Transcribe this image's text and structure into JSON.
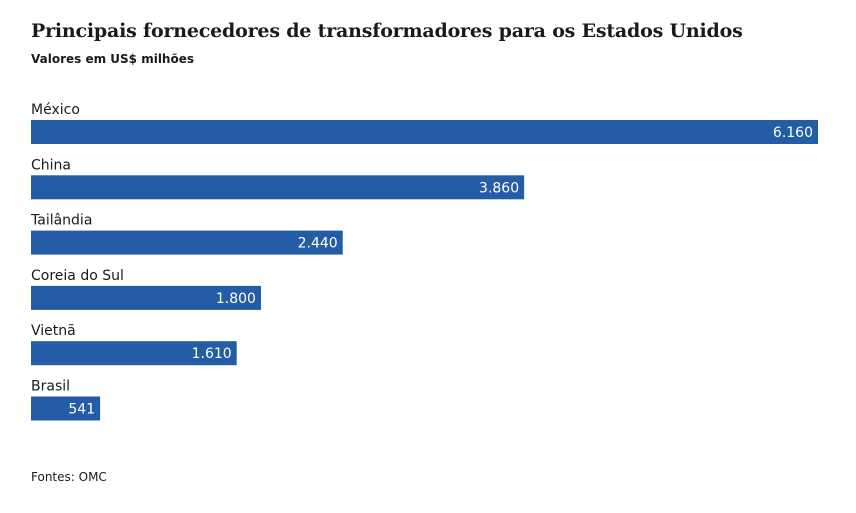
{
  "title": "Principais fornecedores de transformadores para os Estados Unidos",
  "subtitle": "Valores em US$ milhões",
  "source": "Fontes: OMC",
  "colors": {
    "bar": "#255ca6",
    "value_text": "#ffffff",
    "text": "#1a1a1a"
  },
  "chart_data": {
    "type": "bar",
    "orientation": "horizontal",
    "categories": [
      "México",
      "China",
      "Tailândia",
      "Coreia do Sul",
      "Vietnã",
      "Brasil"
    ],
    "values": [
      6160,
      3860,
      2440,
      1800,
      1610,
      541
    ],
    "value_labels": [
      "6.160",
      "3.860",
      "2.440",
      "1.800",
      "1.610",
      "541"
    ],
    "title": "Principais fornecedores de transformadores para os Estados Unidos",
    "subtitle": "Valores em US$ milhões",
    "xlabel": "",
    "ylabel": "",
    "xlim": [
      0,
      6160
    ],
    "grid": false,
    "legend": "none"
  }
}
